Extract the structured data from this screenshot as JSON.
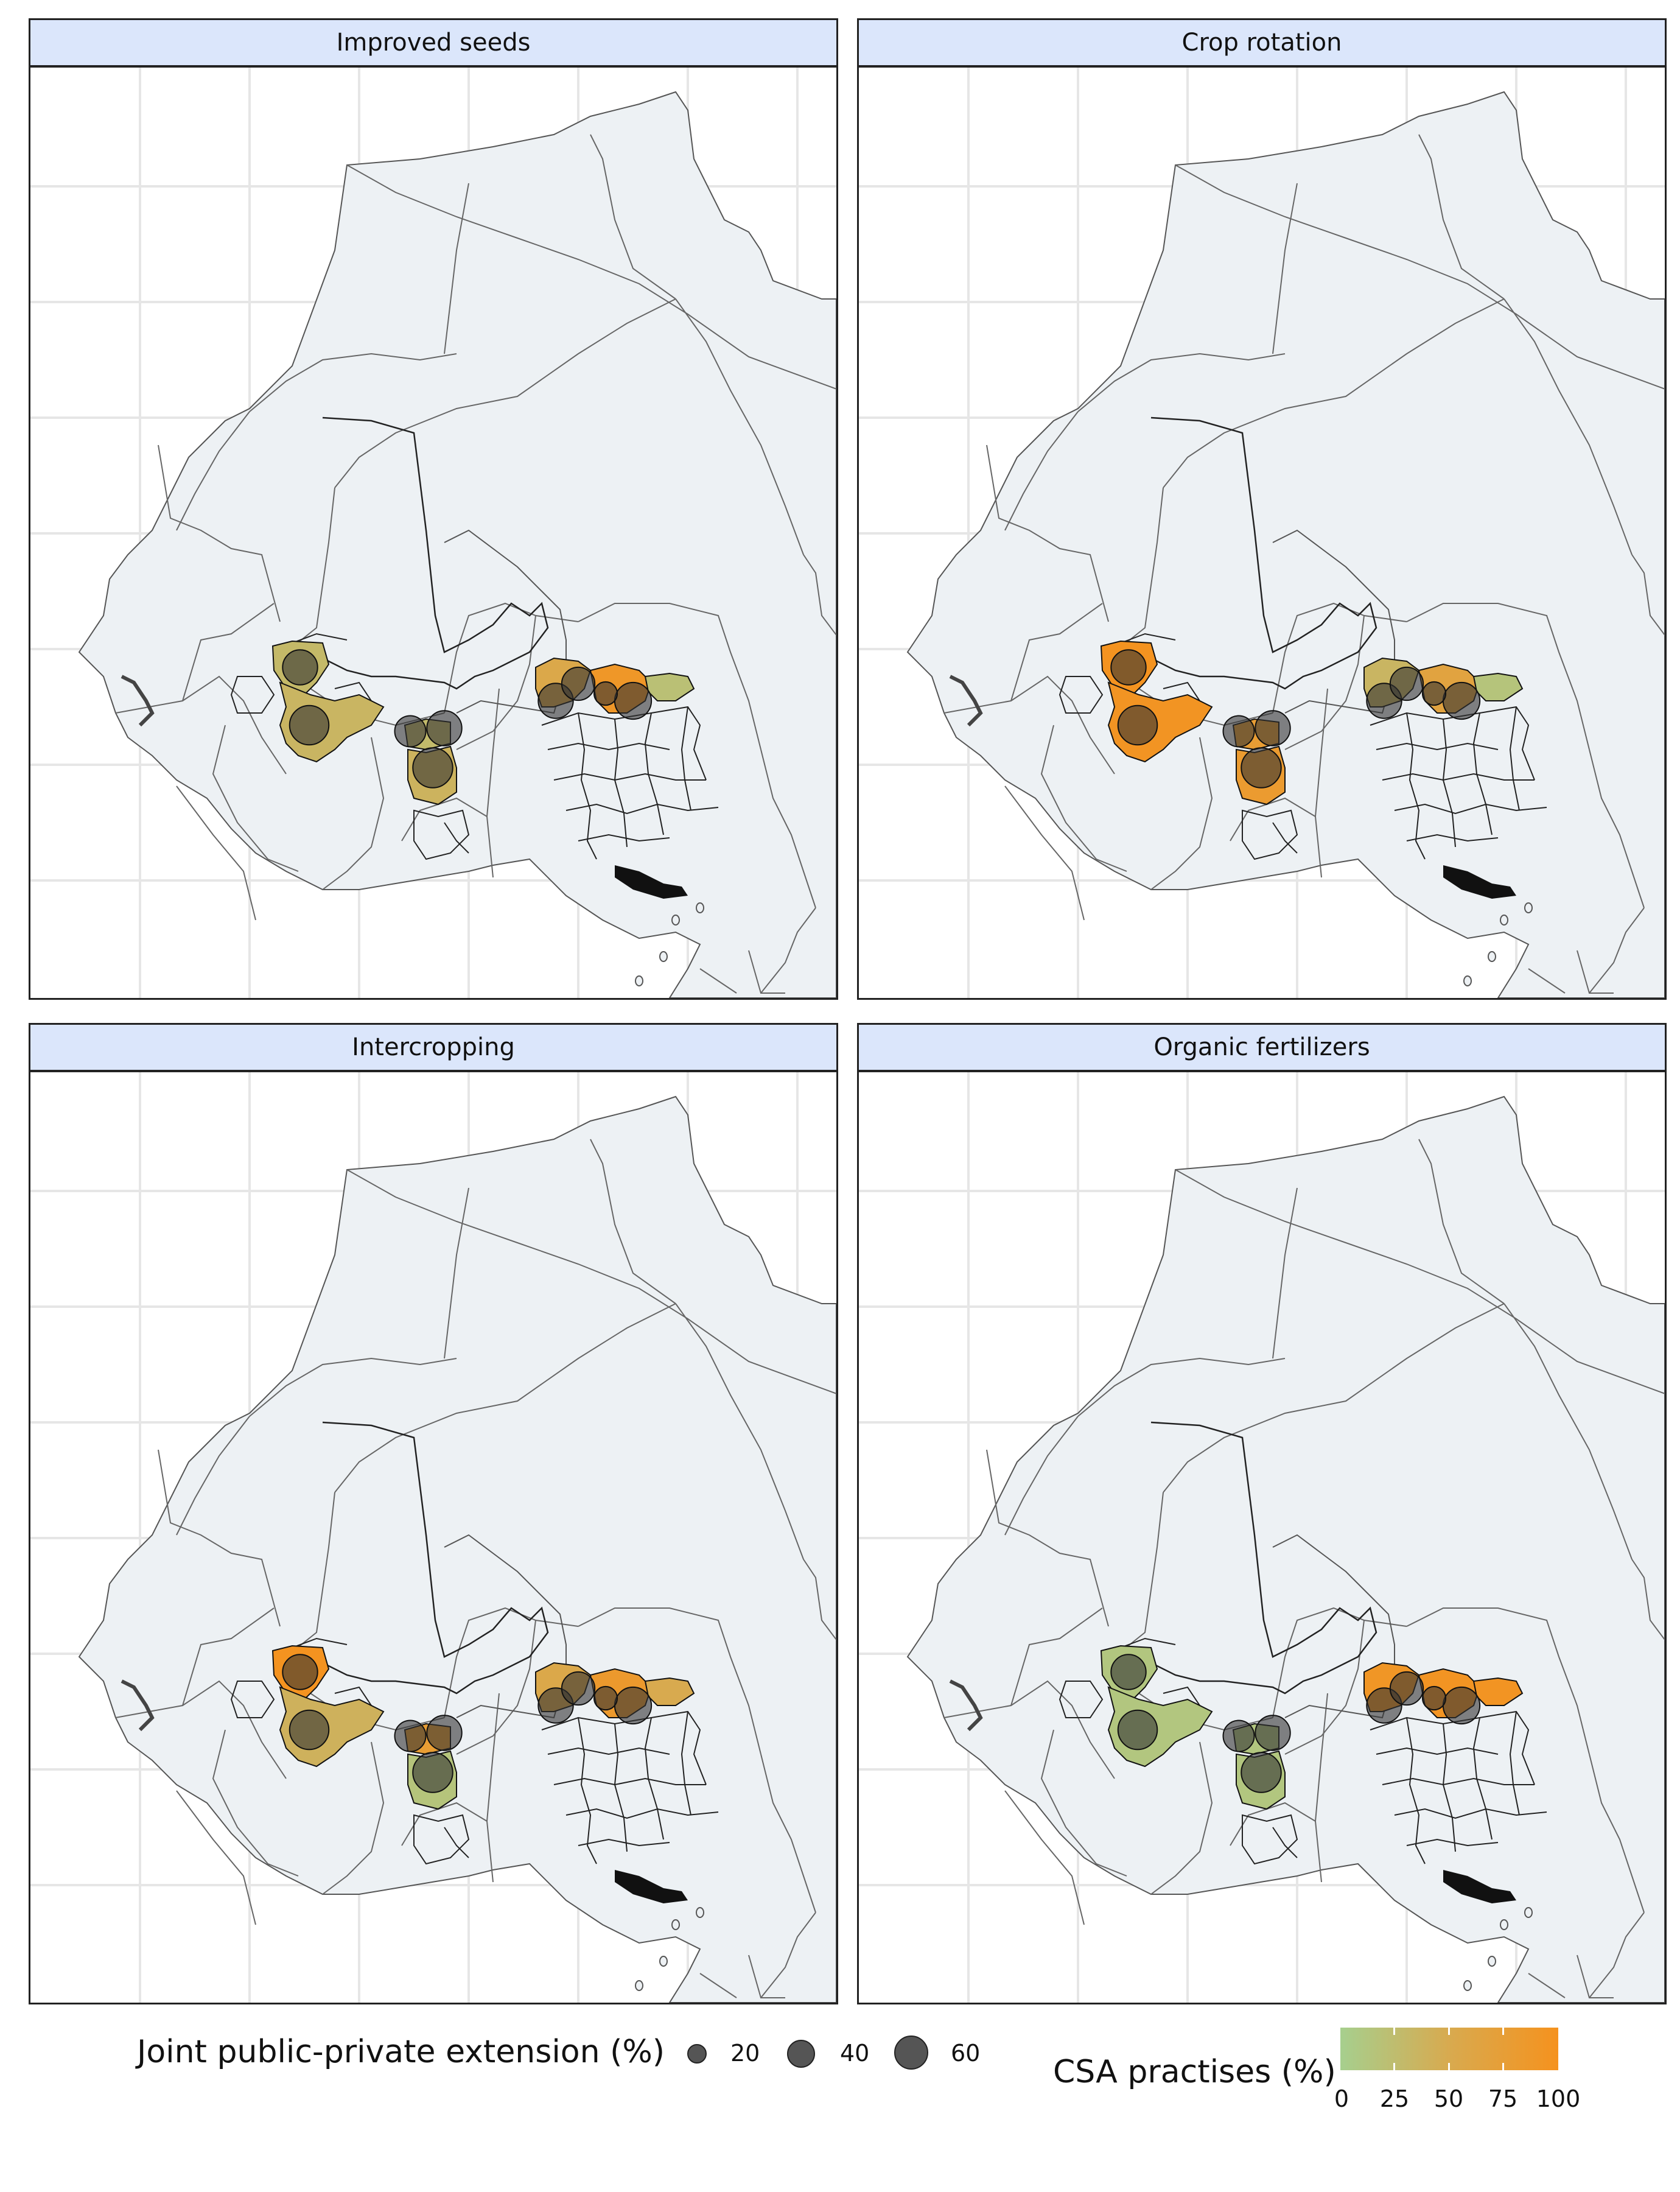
{
  "panels": [
    {
      "title": "Improved seeds",
      "regions": {
        "bf1": 30,
        "bf2": 35,
        "gh1": 28,
        "gh2": 38,
        "ng1": 55,
        "ng2": 90,
        "ng3": 20
      }
    },
    {
      "title": "Crop rotation",
      "regions": {
        "bf1": 98,
        "bf2": 95,
        "gh1": 78,
        "gh2": 82,
        "ng1": 35,
        "ng2": 65,
        "ng3": 15
      }
    },
    {
      "title": "Intercropping",
      "regions": {
        "bf1": 98,
        "bf2": 40,
        "gh1": 78,
        "gh2": 15,
        "ng1": 55,
        "ng2": 85,
        "ng3": 50
      }
    },
    {
      "title": "Organic fertilizers",
      "regions": {
        "bf1": 12,
        "bf2": 12,
        "gh1": 12,
        "gh2": 12,
        "ng1": 92,
        "ng2": 95,
        "ng3": 95
      }
    }
  ],
  "bubbles": [
    {
      "region": "bf1",
      "extension": 35
    },
    {
      "region": "bf2",
      "extension": 48
    },
    {
      "region": "gh1",
      "extension": 35
    },
    {
      "region": "gh2",
      "extension": 50
    },
    {
      "region": "gh3",
      "extension": 25
    },
    {
      "region": "ng1",
      "extension": 35
    },
    {
      "region": "ng2",
      "extension": 40
    },
    {
      "region": "ng3",
      "extension": 30
    },
    {
      "region": "ng4",
      "extension": 10
    }
  ],
  "legend": {
    "size_title": "Joint public-private extension (%)",
    "size_items": [
      {
        "value": 20,
        "label": "20"
      },
      {
        "value": 40,
        "label": "40"
      },
      {
        "value": 60,
        "label": "60"
      }
    ],
    "color_title": "CSA practises (%)",
    "color_ticks": [
      "0",
      "25",
      "50",
      "75",
      "100"
    ],
    "color_low": "#a6cf8e",
    "color_mid": "#d8aa4f",
    "color_high": "#f5921e"
  },
  "colors": {
    "land": "#edf1f4",
    "water": "#ffffff",
    "grid": "#e6e6e6",
    "bubble": "#333333"
  }
}
